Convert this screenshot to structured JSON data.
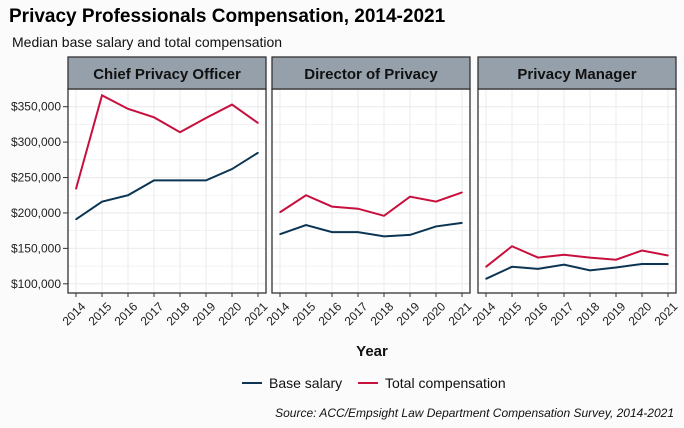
{
  "chart_data": {
    "type": "line",
    "title": "Privacy Professionals Compensation, 2014-2021",
    "subtitle": "Median base salary and total compensation",
    "xlabel": "Year",
    "ylabel": "",
    "caption": "Source: ACC/Empsight Law Department Compensation Survey, 2014-2021",
    "x": [
      2014,
      2015,
      2016,
      2017,
      2018,
      2019,
      2020,
      2021
    ],
    "y_ticks": [
      "$100,000",
      "$150,000",
      "$200,000",
      "$250,000",
      "$300,000",
      "$350,000"
    ],
    "y_tick_values": [
      100000,
      150000,
      200000,
      250000,
      300000,
      350000
    ],
    "ylim": [
      87000,
      375000
    ],
    "grid": true,
    "legend_position": "bottom",
    "colors": {
      "Base salary": "#0b3552",
      "Total compensation": "#c8103e"
    },
    "legend": [
      "Base salary",
      "Total compensation"
    ],
    "facets": [
      {
        "name": "Chief Privacy Officer",
        "series": [
          {
            "name": "Base salary",
            "values": [
              191000,
              216000,
              225000,
              246000,
              246000,
              246000,
              262000,
              285000
            ]
          },
          {
            "name": "Total compensation",
            "values": [
              234000,
              366000,
              347000,
              335000,
              314000,
              334000,
              353000,
              327000
            ]
          }
        ]
      },
      {
        "name": "Director of Privacy",
        "series": [
          {
            "name": "Base salary",
            "values": [
              170000,
              183000,
              173000,
              173000,
              167000,
              169000,
              181000,
              186000
            ]
          },
          {
            "name": "Total compensation",
            "values": [
              201000,
              225000,
              209000,
              206000,
              196000,
              223000,
              216000,
              229000
            ]
          }
        ]
      },
      {
        "name": "Privacy Manager",
        "series": [
          {
            "name": "Base salary",
            "values": [
              107000,
              124000,
              121000,
              127000,
              119000,
              123000,
              128000,
              128000
            ]
          },
          {
            "name": "Total compensation",
            "values": [
              124000,
              153000,
              137000,
              141000,
              137000,
              134000,
              147000,
              140000
            ]
          }
        ]
      }
    ]
  }
}
